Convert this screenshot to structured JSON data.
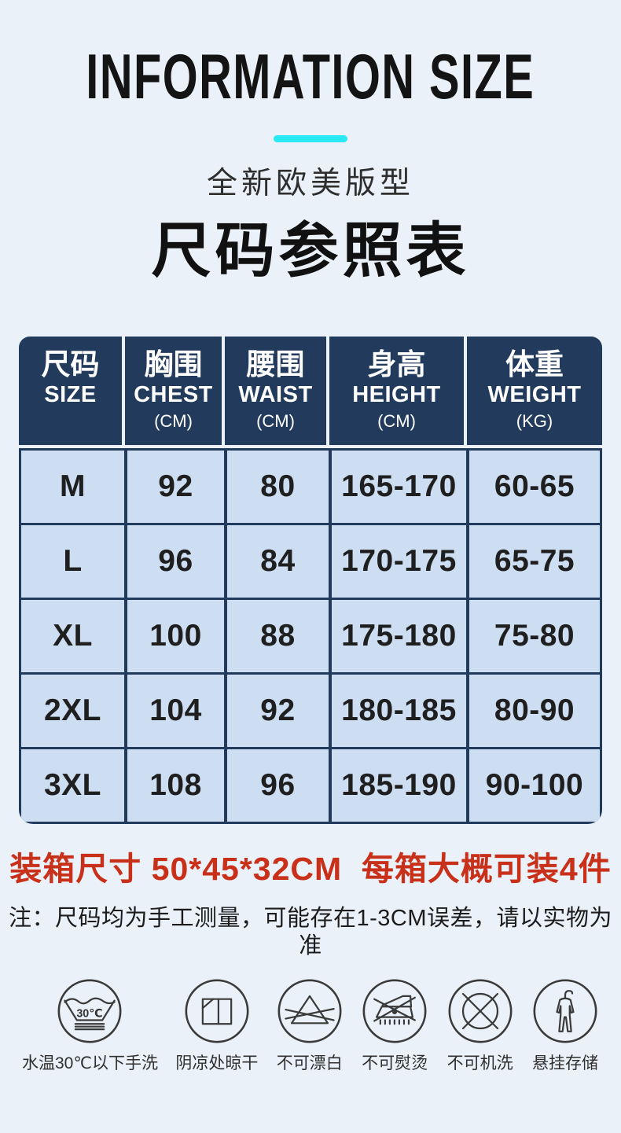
{
  "page": {
    "background": "#eaf1f9"
  },
  "header": {
    "title": "INFORMATION SIZE",
    "subtitle": "全新欧美版型",
    "heading_cn": "尺码参照表",
    "accent_color": "#29e9f2"
  },
  "size_table": {
    "header_bg": "#223a5c",
    "cell_bg": "#cddef3",
    "border_color": "#223a5c",
    "columns": [
      {
        "cn": "尺码",
        "en": "SIZE",
        "unit": ""
      },
      {
        "cn": "胸围",
        "en": "CHEST",
        "unit": "(CM)"
      },
      {
        "cn": "腰围",
        "en": "WAIST",
        "unit": "(CM)"
      },
      {
        "cn": "身高",
        "en": "HEIGHT",
        "unit": "(CM)"
      },
      {
        "cn": "体重",
        "en": "WEIGHT",
        "unit": "(KG)"
      }
    ],
    "rows": [
      [
        "M",
        "92",
        "80",
        "165-170",
        "60-65"
      ],
      [
        "L",
        "96",
        "84",
        "170-175",
        "65-75"
      ],
      [
        "XL",
        "100",
        "88",
        "175-180",
        "75-80"
      ],
      [
        "2XL",
        "104",
        "92",
        "180-185",
        "80-90"
      ],
      [
        "3XL",
        "108",
        "96",
        "185-190",
        "90-100"
      ]
    ]
  },
  "packing_note": {
    "text": "装箱尺寸 50*45*32CM  每箱大概可装4件",
    "color": "#c8301a"
  },
  "measure_note": "注：尺码均为手工测量，可能存在1-3CM误差，请以实物为准",
  "care_icons": [
    {
      "icon": "hand-wash-30-icon",
      "label": "水温30℃以下手洗",
      "temp": "30℃"
    },
    {
      "icon": "shade-dry-icon",
      "label": "阴凉处晾干"
    },
    {
      "icon": "no-bleach-icon",
      "label": "不可漂白"
    },
    {
      "icon": "no-iron-icon",
      "label": "不可熨烫"
    },
    {
      "icon": "no-machine-wash-icon",
      "label": "不可机洗"
    },
    {
      "icon": "hang-storage-icon",
      "label": "悬挂存储"
    }
  ]
}
